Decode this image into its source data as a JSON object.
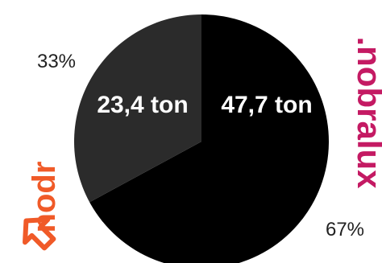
{
  "chart_data": {
    "type": "pie",
    "slices": [
      {
        "value": 47.7,
        "label": "47,7 ton",
        "percent_label": "67%",
        "color": "#000000"
      },
      {
        "value": 23.4,
        "label": "23,4 ton",
        "percent_label": "33%",
        "color": "#2b2b2b"
      }
    ],
    "start_angle_deg": 0,
    "direction": "clockwise"
  },
  "logos": {
    "left": {
      "text": "nodr",
      "color": "#f05a28",
      "icon": "nodr-arrow-logo"
    },
    "right": {
      "text": ".nobralux",
      "color": "#c41a63"
    }
  }
}
